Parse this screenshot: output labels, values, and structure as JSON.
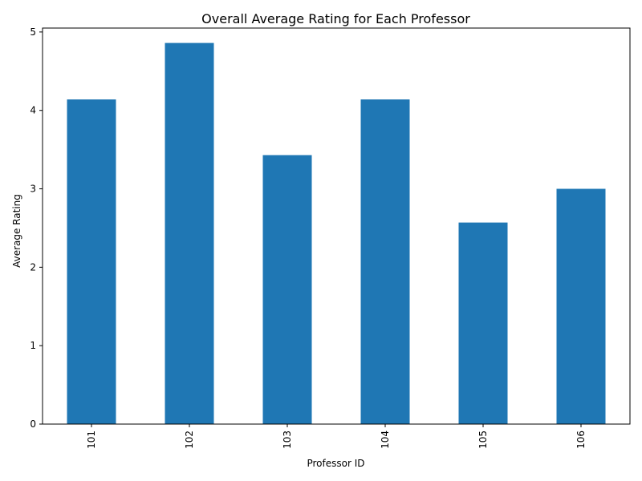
{
  "chart_data": {
    "type": "bar",
    "title": "Overall Average Rating for Each Professor",
    "xlabel": "Professor ID",
    "ylabel": "Average Rating",
    "categories": [
      "101",
      "102",
      "103",
      "104",
      "105",
      "106"
    ],
    "values": [
      4.14,
      4.86,
      3.43,
      4.14,
      2.57,
      3.0
    ],
    "ylim": [
      0,
      5.05
    ],
    "yticks": [
      0,
      1,
      2,
      3,
      4,
      5
    ],
    "bar_color": "#1f77b4",
    "grid": false,
    "legend": "none"
  }
}
